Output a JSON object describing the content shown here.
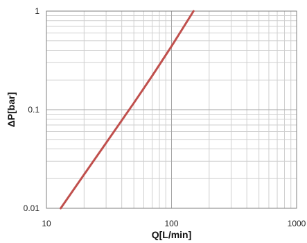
{
  "chart_data": {
    "type": "line",
    "title": "",
    "xlabel": "Q[L/min]",
    "ylabel": "ΔP[bar]",
    "x_scale": "log",
    "y_scale": "log",
    "xlim": [
      10,
      1000
    ],
    "ylim": [
      0.01,
      1
    ],
    "grid": true,
    "legend": "none",
    "x_tick_labels": [
      "10",
      "100",
      "1000"
    ],
    "y_tick_labels": [
      "0.01",
      "0.1",
      "1"
    ],
    "series": [
      {
        "x": [
          13,
          20,
          30,
          50,
          70,
          100,
          150
        ],
        "y": [
          0.01,
          0.022,
          0.046,
          0.117,
          0.22,
          0.44,
          1.0
        ]
      }
    ],
    "colors": {
      "line": "#c0504d",
      "grid_major": "#a6a6a6",
      "grid_minor": "#cfcfcf",
      "axis": "#7f7f7f"
    }
  }
}
